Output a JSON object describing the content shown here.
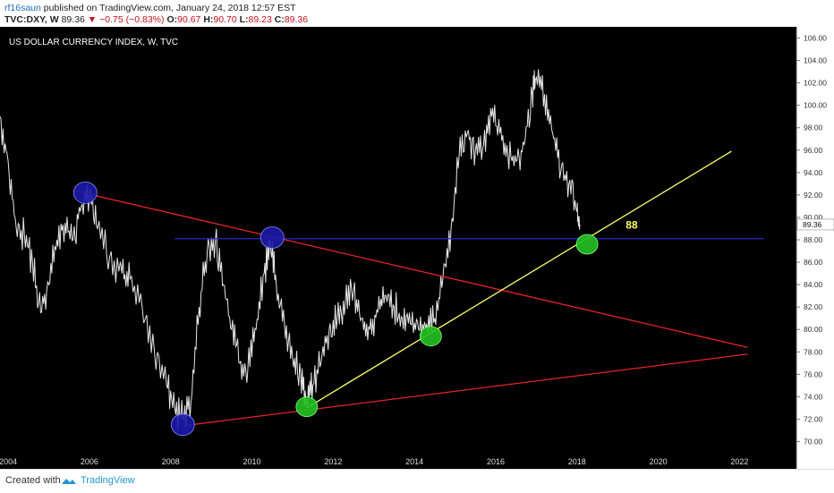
{
  "header": {
    "user": "rf16saun",
    "published_text": "published on TradingView.com, January 24, 2018 12:57 EST",
    "symbol": "TVC:DXY, W",
    "last": "89.36",
    "change": "−0.75 (−0.83%)",
    "open_label": "O:",
    "open": "90.67",
    "high_label": "H:",
    "high": "90.70",
    "low_label": "L:",
    "low": "89.23",
    "close_label": "C:",
    "close": "89.36"
  },
  "footer": {
    "created_with": "Created with",
    "brand": "TradingView"
  },
  "colors": {
    "background": "#000000",
    "price_line": "#e6e6e6",
    "red_line": "#e8222a",
    "yellow_line": "#ffff66",
    "blue_line": "#2828cc",
    "blue_circle": "#1a1aa8",
    "green_circle": "#22c222",
    "annotation": "#ffff66",
    "change_negative": "#c1121f"
  },
  "chart_data": {
    "type": "line",
    "title": "US DOLLAR CURRENCY INDEX, W, TVC",
    "xlabel": "",
    "ylabel": "",
    "xlim": [
      2003.8,
      2023.4
    ],
    "ylim": [
      69.0,
      107.0
    ],
    "x_ticks": [
      "2004",
      "2006",
      "2008",
      "2010",
      "2012",
      "2014",
      "2016",
      "2018",
      "2020",
      "2022"
    ],
    "x_tick_values": [
      2004,
      2006,
      2008,
      2010,
      2012,
      2014,
      2016,
      2018,
      2020,
      2022
    ],
    "y_ticks": [
      "70.00",
      "72.00",
      "74.00",
      "76.00",
      "78.00",
      "80.00",
      "82.00",
      "84.00",
      "86.00",
      "88.00",
      "90.00",
      "92.00",
      "94.00",
      "96.00",
      "98.00",
      "100.00",
      "102.00",
      "104.00",
      "106.00"
    ],
    "y_tick_values": [
      70,
      72,
      74,
      76,
      78,
      80,
      82,
      84,
      86,
      88,
      90,
      92,
      94,
      96,
      98,
      100,
      102,
      104,
      106
    ],
    "last_price_label": "89.36",
    "last_price": 89.36,
    "series": [
      {
        "name": "",
        "x": [
          2003.8,
          2004.0,
          2004.2,
          2004.4,
          2004.6,
          2004.8,
          2005.0,
          2005.2,
          2005.4,
          2005.6,
          2005.8,
          2006.0,
          2006.2,
          2006.5,
          2006.8,
          2007.0,
          2007.3,
          2007.6,
          2007.9,
          2008.1,
          2008.3,
          2008.5,
          2008.7,
          2008.9,
          2009.1,
          2009.3,
          2009.5,
          2009.7,
          2009.9,
          2010.1,
          2010.3,
          2010.45,
          2010.6,
          2010.8,
          2011.0,
          2011.2,
          2011.35,
          2011.5,
          2011.7,
          2011.9,
          2012.1,
          2012.3,
          2012.5,
          2012.7,
          2012.9,
          2013.1,
          2013.3,
          2013.5,
          2013.7,
          2013.9,
          2014.1,
          2014.3,
          2014.5,
          2014.7,
          2014.9,
          2015.1,
          2015.3,
          2015.5,
          2015.7,
          2015.9,
          2016.1,
          2016.3,
          2016.5,
          2016.7,
          2016.9,
          2017.0,
          2017.2,
          2017.4,
          2017.6,
          2017.8,
          2018.0,
          2018.07
        ],
        "values": [
          99.0,
          95.0,
          89.0,
          88.5,
          86.0,
          81.5,
          84.0,
          88.0,
          89.5,
          88.0,
          91.0,
          92.0,
          89.0,
          86.5,
          85.0,
          84.5,
          82.0,
          78.0,
          75.0,
          73.0,
          72.0,
          73.5,
          82.0,
          87.0,
          88.0,
          84.0,
          80.0,
          77.0,
          76.5,
          80.0,
          85.0,
          88.0,
          84.0,
          80.5,
          77.5,
          76.0,
          73.5,
          75.0,
          77.0,
          80.0,
          81.0,
          82.5,
          83.5,
          81.0,
          80.0,
          81.5,
          83.0,
          82.0,
          81.0,
          80.5,
          80.0,
          80.5,
          81.0,
          84.5,
          89.0,
          95.5,
          97.5,
          96.0,
          96.5,
          99.0,
          97.5,
          95.5,
          95.0,
          96.5,
          101.0,
          102.5,
          101.0,
          97.5,
          94.0,
          93.0,
          90.5,
          89.36
        ]
      }
    ],
    "annotations": {
      "red_upper_line": {
        "x1": 2005.6,
        "y1": 92.4,
        "x2": 2022.2,
        "y2": 78.4
      },
      "red_lower_line": {
        "x1": 2008.3,
        "y1": 71.4,
        "x2": 2022.2,
        "y2": 77.8
      },
      "yellow_line": {
        "x1": 2011.35,
        "y1": 73.0,
        "x2": 2021.8,
        "y2": 95.9
      },
      "blue_horizontal_line": {
        "x1": 2008.1,
        "y1": 88.1,
        "x2": 2022.6,
        "y2": 88.1
      },
      "blue_circles": [
        {
          "x": 2005.9,
          "y": 92.2
        },
        {
          "x": 2010.5,
          "y": 88.2
        },
        {
          "x": 2008.3,
          "y": 71.5
        }
      ],
      "green_circles": [
        {
          "x": 2011.35,
          "y": 73.1
        },
        {
          "x": 2014.4,
          "y": 79.4
        },
        {
          "x": 2018.25,
          "y": 87.6
        }
      ],
      "label_88": {
        "text": "88",
        "x": 2019.2,
        "y": 89.0
      }
    }
  }
}
